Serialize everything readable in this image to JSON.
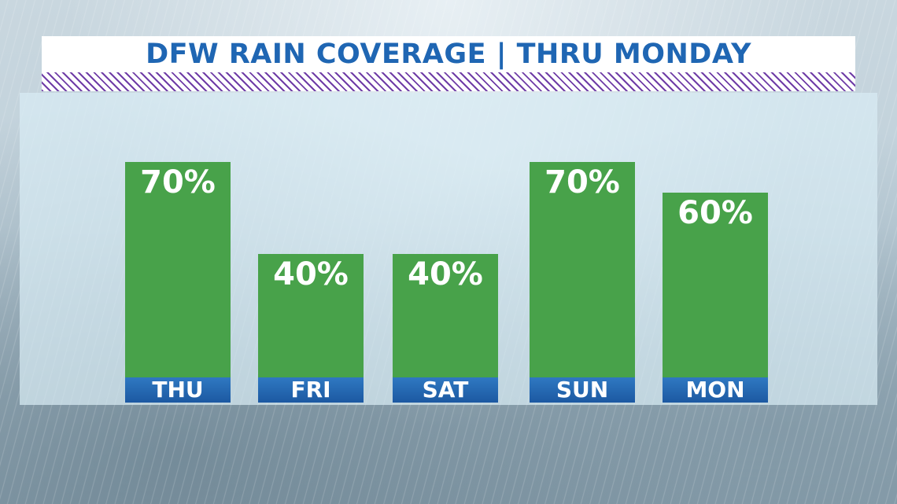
{
  "title": "DFW RAIN COVERAGE | THRU MONDAY",
  "colors": {
    "title_text": "#1f66b3",
    "bar_fill": "#48a24a",
    "label_band": "#1c59a2",
    "hatch": "#6f3da7"
  },
  "chart_data": {
    "type": "bar",
    "title": "DFW RAIN COVERAGE | THRU MONDAY",
    "categories": [
      "THU",
      "FRI",
      "SAT",
      "SUN",
      "MON"
    ],
    "values": [
      70,
      40,
      40,
      70,
      60
    ],
    "value_labels": [
      "70%",
      "40%",
      "40%",
      "70%",
      "60%"
    ],
    "ylim": [
      0,
      100
    ],
    "grid": false,
    "legend": "none"
  }
}
